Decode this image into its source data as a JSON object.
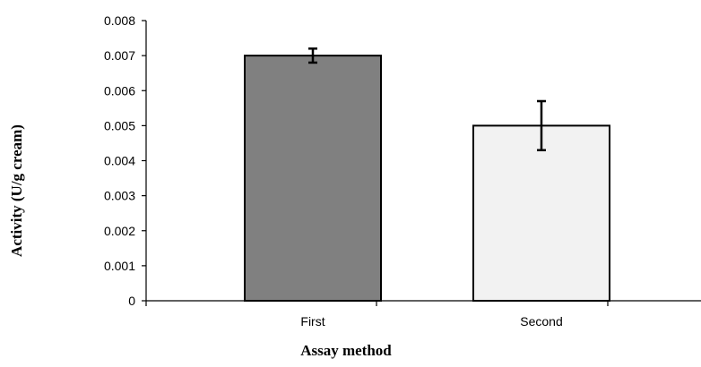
{
  "chart_data": {
    "type": "bar",
    "title": "",
    "xlabel": "Assay method",
    "ylabel": "Activity (U/g cream)",
    "categories": [
      "First",
      "Second"
    ],
    "values": [
      0.007,
      0.005
    ],
    "error_low": [
      0.0068,
      0.0043
    ],
    "error_high": [
      0.0072,
      0.0057
    ],
    "bar_colors": [
      "#808080",
      "#f2f2f2"
    ],
    "ylim": [
      0,
      0.008
    ],
    "yticks": [
      "0",
      "0.001",
      "0.002",
      "0.003",
      "0.004",
      "0.005",
      "0.006",
      "0.007",
      "0.008"
    ],
    "grid": false,
    "legend": "none"
  }
}
